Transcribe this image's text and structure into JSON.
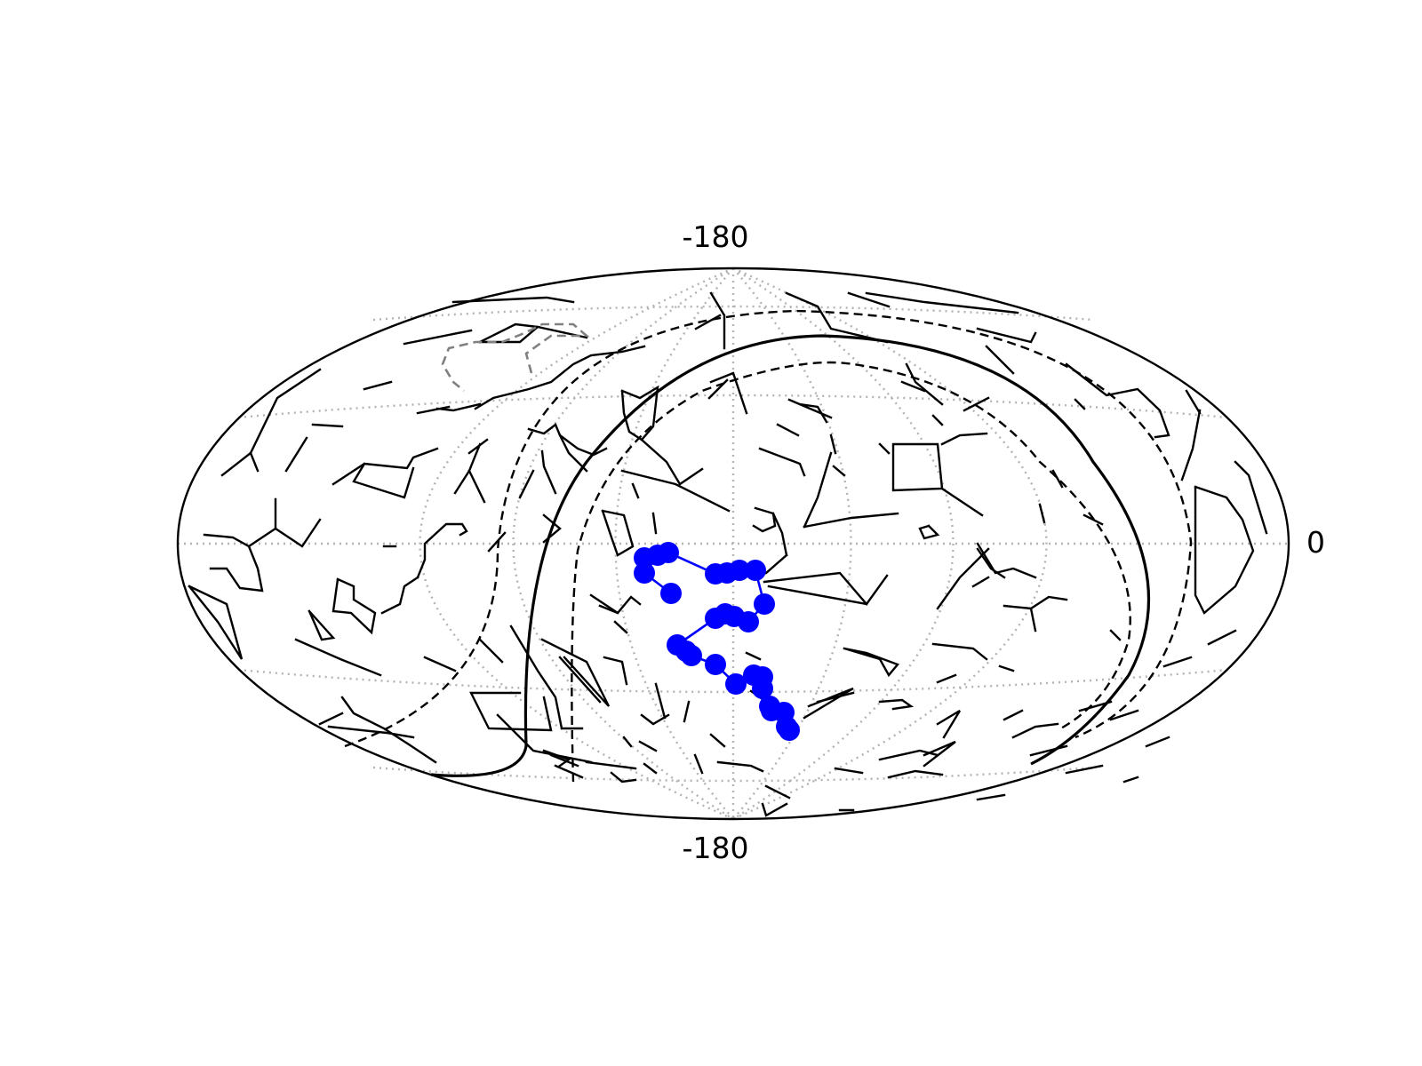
{
  "figure": {
    "top_label": "-180",
    "bottom_label": "-180",
    "right_label": "0"
  },
  "colors": {
    "track": "#0000ff",
    "constellation_lines": "#000000",
    "graticule": "#b3b3b3",
    "background": "#ffffff"
  },
  "map": {
    "projection": "hammer",
    "graticule": true,
    "track_point_count": 27
  }
}
